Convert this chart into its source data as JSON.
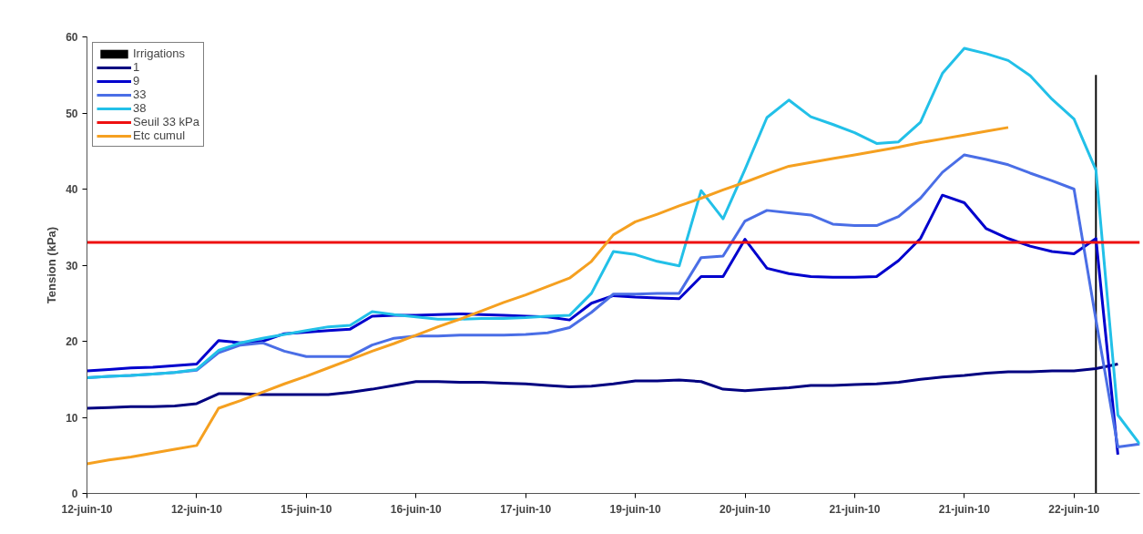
{
  "chart_data": {
    "type": "line",
    "ylabel": "Tension (kPa)",
    "ylim": [
      0,
      60
    ],
    "yticks": [
      0,
      10,
      20,
      30,
      40,
      50,
      60
    ],
    "categories": [
      "12-juin-10",
      null,
      null,
      null,
      null,
      "12-juin-10",
      null,
      null,
      null,
      null,
      "15-juin-10",
      null,
      null,
      null,
      null,
      "16-juin-10",
      null,
      null,
      null,
      null,
      "17-juin-10",
      null,
      null,
      null,
      null,
      "19-juin-10",
      null,
      null,
      null,
      null,
      "20-juin-10",
      null,
      null,
      null,
      null,
      "21-juin-10",
      null,
      null,
      null,
      null,
      "21-juin-10",
      null,
      null,
      null,
      null,
      "22-juin-10",
      null,
      null,
      null
    ],
    "grid": false,
    "legend": "top left",
    "series": [
      {
        "name": "Irrigations",
        "type": "bar",
        "color": "#000000",
        "values": [
          null,
          null,
          null,
          null,
          null,
          null,
          null,
          null,
          null,
          null,
          null,
          null,
          null,
          null,
          null,
          null,
          null,
          null,
          null,
          null,
          null,
          null,
          null,
          null,
          null,
          null,
          null,
          null,
          null,
          null,
          null,
          null,
          null,
          null,
          null,
          null,
          null,
          null,
          null,
          null,
          null,
          null,
          null,
          null,
          null,
          null,
          55,
          null,
          null
        ]
      },
      {
        "name": "1",
        "color": "#000080",
        "values": [
          11.2,
          11.3,
          11.4,
          11.4,
          11.5,
          11.8,
          13.1,
          13.1,
          13.0,
          13.0,
          13.0,
          13.0,
          13.3,
          13.7,
          14.2,
          14.7,
          14.7,
          14.6,
          14.6,
          14.5,
          14.4,
          14.2,
          14.0,
          14.1,
          14.4,
          14.8,
          14.8,
          14.9,
          14.7,
          13.7,
          13.5,
          13.7,
          13.9,
          14.2,
          14.2,
          14.3,
          14.4,
          14.6,
          15.0,
          15.3,
          15.5,
          15.8,
          16.0,
          16.0,
          16.1,
          16.1,
          16.4,
          17.0,
          null
        ]
      },
      {
        "name": "9",
        "color": "#0000cd",
        "values": [
          16.1,
          16.3,
          16.5,
          16.6,
          16.8,
          17.0,
          20.1,
          19.8,
          20.0,
          21.0,
          21.2,
          21.4,
          21.6,
          23.3,
          23.4,
          23.4,
          23.5,
          23.6,
          23.5,
          23.4,
          23.3,
          23.2,
          22.8,
          25.0,
          26.0,
          25.8,
          25.7,
          25.6,
          28.5,
          28.5,
          33.4,
          29.6,
          28.9,
          28.5,
          28.4,
          28.4,
          28.5,
          30.6,
          33.5,
          39.2,
          38.2,
          34.8,
          33.5,
          32.5,
          31.8,
          31.5,
          33.5,
          5.1,
          null
        ]
      },
      {
        "name": "33",
        "color": "#4a6ee6",
        "values": [
          15.2,
          15.4,
          15.5,
          15.7,
          15.9,
          16.2,
          18.5,
          19.5,
          19.8,
          18.7,
          18.0,
          18.0,
          18.0,
          19.5,
          20.4,
          20.7,
          20.7,
          20.8,
          20.8,
          20.8,
          20.9,
          21.1,
          21.8,
          23.8,
          26.2,
          26.2,
          26.3,
          26.3,
          31.0,
          31.2,
          35.8,
          37.2,
          36.9,
          36.6,
          35.4,
          35.2,
          35.2,
          36.4,
          38.8,
          42.2,
          44.5,
          43.9,
          43.2,
          42.1,
          41.1,
          40.0,
          22.8,
          6.1,
          6.5
        ]
      },
      {
        "name": "38",
        "color": "#22c0e8",
        "values": [
          15.2,
          15.4,
          15.5,
          15.7,
          15.9,
          16.3,
          18.8,
          19.8,
          20.4,
          20.9,
          21.4,
          21.9,
          22.1,
          23.9,
          23.5,
          23.2,
          22.9,
          22.9,
          23.0,
          23.0,
          23.1,
          23.3,
          23.4,
          26.3,
          31.8,
          31.4,
          30.5,
          29.9,
          39.8,
          36.1,
          42.6,
          49.4,
          51.7,
          49.5,
          48.5,
          47.4,
          46.0,
          46.2,
          48.8,
          55.2,
          58.5,
          57.8,
          56.9,
          54.9,
          51.8,
          49.2,
          42.5,
          10.3,
          6.5
        ]
      },
      {
        "name": "Seuil 33 kPa",
        "color": "#ee1111",
        "values": [
          33,
          33,
          33,
          33,
          33,
          33,
          33,
          33,
          33,
          33,
          33,
          33,
          33,
          33,
          33,
          33,
          33,
          33,
          33,
          33,
          33,
          33,
          33,
          33,
          33,
          33,
          33,
          33,
          33,
          33,
          33,
          33,
          33,
          33,
          33,
          33,
          33,
          33,
          33,
          33,
          33,
          33,
          33,
          33,
          33,
          33,
          33,
          33,
          33
        ]
      },
      {
        "name": "Etc cumul",
        "color": "#f5a020",
        "values": [
          3.9,
          4.4,
          4.8,
          5.3,
          5.8,
          6.3,
          11.2,
          12.2,
          13.3,
          14.4,
          15.4,
          16.5,
          17.6,
          18.7,
          19.7,
          20.8,
          21.9,
          22.9,
          24.0,
          25.1,
          26.1,
          27.2,
          28.3,
          30.5,
          34.0,
          35.7,
          36.7,
          37.8,
          38.8,
          39.9,
          40.9,
          42.0,
          43.0,
          43.5,
          44.0,
          44.5,
          45.0,
          45.5,
          46.1,
          46.6,
          47.1,
          47.6,
          48.1,
          null,
          null,
          null,
          null,
          null,
          null
        ]
      }
    ]
  }
}
